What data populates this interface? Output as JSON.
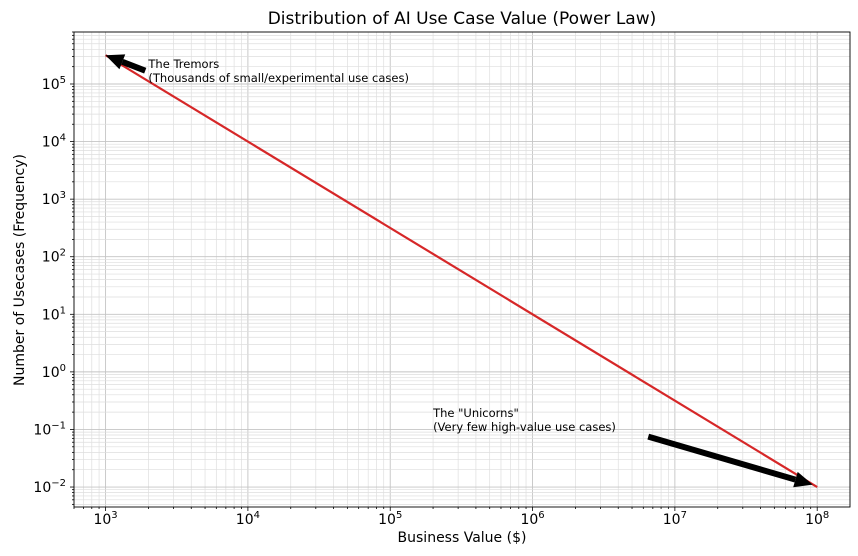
{
  "chart_data": {
    "type": "line",
    "title": "Distribution of AI Use Case Value (Power Law)",
    "xlabel": "Business Value ($)",
    "ylabel": "Number of Usecases (Frequency)",
    "x_scale": "log",
    "y_scale": "log",
    "xlim": [
      600,
      170000000
    ],
    "ylim": [
      0.0045,
      800000
    ],
    "grid": "major and minor",
    "x_ticks": [
      {
        "base": "10",
        "exp": "3",
        "value": 1000
      },
      {
        "base": "10",
        "exp": "4",
        "value": 10000
      },
      {
        "base": "10",
        "exp": "5",
        "value": 100000
      },
      {
        "base": "10",
        "exp": "6",
        "value": 1000000
      },
      {
        "base": "10",
        "exp": "7",
        "value": 10000000
      },
      {
        "base": "10",
        "exp": "8",
        "value": 100000000
      }
    ],
    "y_ticks": [
      {
        "base": "10",
        "exp": "−2",
        "value": 0.01
      },
      {
        "base": "10",
        "exp": "−1",
        "value": 0.1
      },
      {
        "base": "10",
        "exp": "0",
        "value": 1
      },
      {
        "base": "10",
        "exp": "1",
        "value": 10
      },
      {
        "base": "10",
        "exp": "2",
        "value": 100
      },
      {
        "base": "10",
        "exp": "3",
        "value": 1000
      },
      {
        "base": "10",
        "exp": "4",
        "value": 10000
      },
      {
        "base": "10",
        "exp": "5",
        "value": 100000
      }
    ],
    "series": [
      {
        "color": "#d62728",
        "x": [
          1000,
          100000000
        ],
        "y": [
          316000,
          0.01
        ]
      }
    ],
    "annotations": [
      {
        "lines": [
          "The Tremors",
          "(Thousands of small/experimental use cases)"
        ],
        "text_x": 2000,
        "text_y": 150000,
        "arrow_from": [
          1900,
          170000
        ],
        "arrow_to": [
          1000,
          316000
        ]
      },
      {
        "lines": [
          "The \"Unicorns\"",
          "(Very few high-value use cases)"
        ],
        "text_x": 200000,
        "text_y": 0.13,
        "arrow_from": [
          6500000,
          0.075
        ],
        "arrow_to": [
          93000000,
          0.011
        ]
      }
    ]
  }
}
